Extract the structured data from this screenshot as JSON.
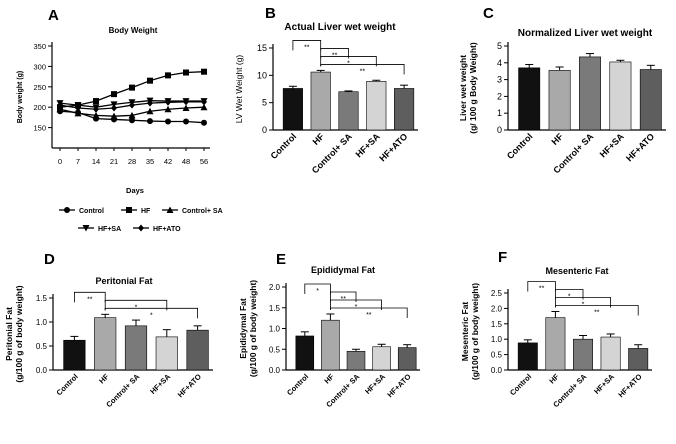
{
  "colors": {
    "Control": "#111111",
    "HF": "#a9a9a9",
    "Control+ SA": "#7a7a7a",
    "HF+SA": "#d4d4d4",
    "HF+ATO": "#5e5e5e"
  },
  "chart_data": [
    {
      "id": "A",
      "letter": "A",
      "type": "line",
      "title": "Body Weight",
      "xlabel": "Days",
      "ylabel": "Body weight (g)",
      "x": [
        0,
        7,
        14,
        21,
        28,
        35,
        42,
        48,
        56
      ],
      "ylim": [
        100,
        350
      ],
      "yticks": [
        150,
        200,
        250,
        300,
        350
      ],
      "series": [
        {
          "name": "Control",
          "marker": "circle",
          "values": [
            190,
            187,
            172,
            170,
            168,
            166,
            165,
            165,
            162
          ]
        },
        {
          "name": "HF",
          "marker": "square",
          "values": [
            200,
            205,
            215,
            232,
            248,
            265,
            278,
            285,
            287
          ]
        },
        {
          "name": "Control+ SA",
          "marker": "triangle-up",
          "values": [
            195,
            185,
            180,
            178,
            180,
            190,
            195,
            198,
            200
          ]
        },
        {
          "name": "HF+SA",
          "marker": "triangle-down",
          "values": [
            210,
            205,
            200,
            207,
            212,
            216,
            215,
            215,
            215
          ]
        },
        {
          "name": "HF+ATO",
          "marker": "diamond",
          "values": [
            205,
            198,
            195,
            198,
            205,
            210,
            212,
            213,
            213
          ]
        }
      ],
      "legend": [
        "Control",
        "HF",
        "Control+ SA",
        "HF+SA",
        "HF+ATO"
      ]
    },
    {
      "id": "B",
      "letter": "B",
      "type": "bar",
      "title": "Actual Liver wet weight",
      "ylabel": "LV Wet Weight (g)",
      "categories": [
        "Control",
        "HF",
        "Control+ SA",
        "HF+SA",
        "HF+ATO"
      ],
      "values": [
        7.6,
        10.6,
        7.0,
        8.9,
        7.6
      ],
      "errors": [
        0.4,
        0.3,
        0.15,
        0.2,
        0.6
      ],
      "ylim": [
        0,
        15
      ],
      "yticks": [
        0,
        5,
        10,
        15
      ],
      "annotations": [
        {
          "a": 0,
          "b": 1,
          "label": "**"
        },
        {
          "a": 1,
          "b": 2,
          "label": "**"
        },
        {
          "a": 1,
          "b": 3,
          "label": "*"
        },
        {
          "a": 1,
          "b": 4,
          "label": "**"
        }
      ]
    },
    {
      "id": "C",
      "letter": "C",
      "type": "bar",
      "title": "Normalized Liver wet weight",
      "ylabel": "Liver wet weight\n(g/ 100 g Body Weight)",
      "categories": [
        "Control",
        "HF",
        "Control+ SA",
        "HF+SA",
        "HF+ATO"
      ],
      "values": [
        3.7,
        3.55,
        4.35,
        4.05,
        3.6
      ],
      "errors": [
        0.2,
        0.2,
        0.2,
        0.1,
        0.25
      ],
      "ylim": [
        0,
        5
      ],
      "yticks": [
        0,
        1,
        2,
        3,
        4,
        5
      ],
      "annotations": []
    },
    {
      "id": "D",
      "letter": "D",
      "type": "bar",
      "title": "Peritonial Fat",
      "ylabel": "Peritonial Fat\n(g/100 g of body weight)",
      "categories": [
        "Control",
        "HF",
        "Control+ SA",
        "HF+SA",
        "HF+ATO"
      ],
      "values": [
        0.62,
        1.09,
        0.92,
        0.69,
        0.83
      ],
      "errors": [
        0.08,
        0.07,
        0.12,
        0.15,
        0.09
      ],
      "ylim": [
        0,
        1.5
      ],
      "yticks": [
        "0.0",
        "0.5",
        "1.0",
        "1.5"
      ],
      "annotations": [
        {
          "a": 0,
          "b": 1,
          "label": "**"
        },
        {
          "a": 1,
          "b": 3,
          "label": "*"
        },
        {
          "a": 1,
          "b": 4,
          "label": "*"
        }
      ]
    },
    {
      "id": "E",
      "letter": "E",
      "type": "bar",
      "title": "Epididymal Fat",
      "ylabel": "Epididymal Fat\n(g/100 g of body weight)",
      "categories": [
        "Control",
        "HF",
        "Control+ SA",
        "HF+SA",
        "HF+ATO"
      ],
      "values": [
        0.82,
        1.2,
        0.45,
        0.56,
        0.54
      ],
      "errors": [
        0.1,
        0.15,
        0.05,
        0.06,
        0.07
      ],
      "ylim": [
        0,
        2.0
      ],
      "yticks": [
        "0.0",
        "0.5",
        "1.0",
        "1.5",
        "2.0"
      ],
      "annotations": [
        {
          "a": 0,
          "b": 1,
          "label": "*"
        },
        {
          "a": 1,
          "b": 2,
          "label": "**"
        },
        {
          "a": 1,
          "b": 3,
          "label": "*"
        },
        {
          "a": 1,
          "b": 4,
          "label": "**"
        }
      ]
    },
    {
      "id": "F",
      "letter": "F",
      "type": "bar",
      "title": "Mesenteric Fat",
      "ylabel": "Mesenteric Fat\n(g/100 g of body weight)",
      "categories": [
        "Control",
        "HF",
        "Control+ SA",
        "HF+SA",
        "HF+ATO"
      ],
      "values": [
        0.88,
        1.7,
        1.0,
        1.07,
        0.7
      ],
      "errors": [
        0.1,
        0.2,
        0.12,
        0.1,
        0.12
      ],
      "ylim": [
        0,
        2.5
      ],
      "yticks": [
        "0.0",
        "0.5",
        "1.0",
        "1.5",
        "2.0",
        "2.5"
      ],
      "annotations": [
        {
          "a": 0,
          "b": 1,
          "label": "**"
        },
        {
          "a": 1,
          "b": 2,
          "label": "*"
        },
        {
          "a": 1,
          "b": 3,
          "label": "*"
        },
        {
          "a": 1,
          "b": 4,
          "label": "**"
        }
      ]
    }
  ]
}
